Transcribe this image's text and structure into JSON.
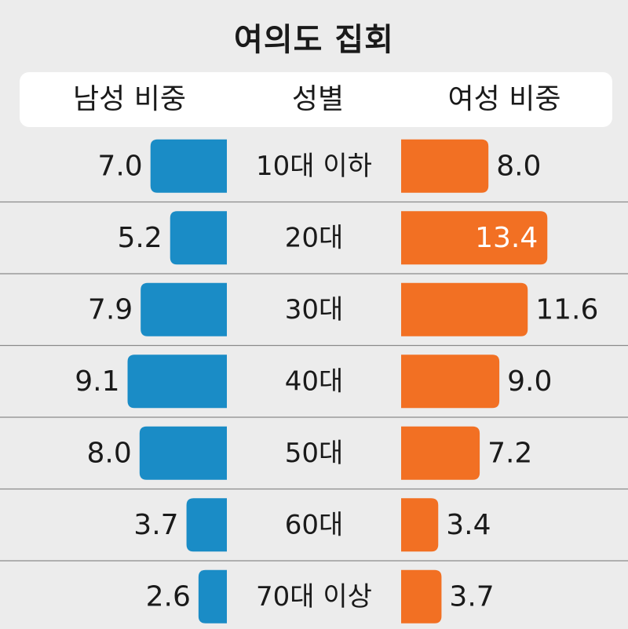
{
  "title": "여의도 집회",
  "header": {
    "left": "남성 비중",
    "center": "성별",
    "right": "여성 비중"
  },
  "colors": {
    "male": "#1a8cc6",
    "female": "#f27023",
    "divider": "#8a8a8a",
    "text": "#1a1a1a",
    "label_inside": "#ffffff"
  },
  "chart_data": {
    "type": "bar",
    "orientation": "horizontal-diverging",
    "categories": [
      "10대 이하",
      "20대",
      "30대",
      "40대",
      "50대",
      "60대",
      "70대 이상"
    ],
    "series": [
      {
        "name": "남성 비중",
        "values": [
          7.0,
          5.2,
          7.9,
          9.1,
          8.0,
          3.7,
          2.6
        ]
      },
      {
        "name": "여성 비중",
        "values": [
          8.0,
          13.4,
          11.6,
          9.0,
          7.2,
          3.4,
          3.7
        ]
      }
    ],
    "labels_male": [
      "7.0",
      "5.2",
      "7.9",
      "9.1",
      "8.0",
      "3.7",
      "2.6"
    ],
    "labels_female": [
      "8.0",
      "13.4",
      "11.6",
      "9.0",
      "7.2",
      "3.4",
      "3.7"
    ],
    "female_label_inside": [
      false,
      true,
      false,
      false,
      false,
      false,
      false
    ]
  }
}
